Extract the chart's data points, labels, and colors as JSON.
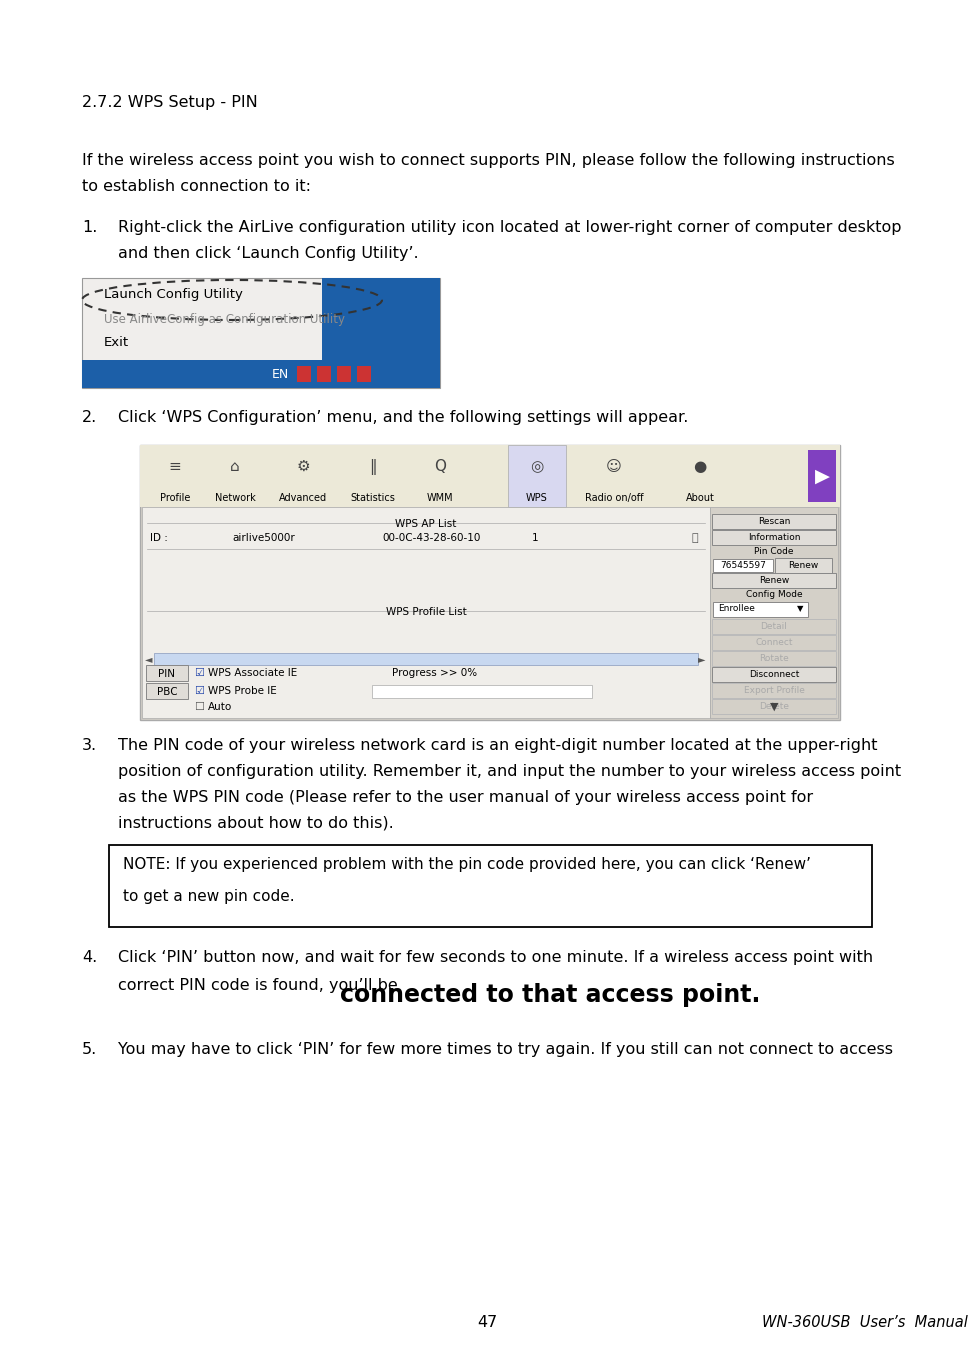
{
  "page_bg": "#ffffff",
  "section_title": "2.7.2 WPS Setup - PIN",
  "intro_line1": "If the wireless access point you wish to connect supports PIN, please follow the following instructions",
  "intro_line2": "to establish connection to it:",
  "item1_line1": "Right-click the AirLive configuration utility icon located at lower-right corner of computer desktop",
  "item1_line2": "and then click ‘Launch Config Utility’.",
  "item2_text": "Click ‘WPS Configuration’ menu, and the following settings will appear.",
  "item3_line1": "The PIN code of your wireless network card is an eight-digit number located at the upper-right",
  "item3_line2": "position of configuration utility. Remember it, and input the number to your wireless access point",
  "item3_line3": "as the WPS PIN code (Please refer to the user manual of your wireless access point for",
  "item3_line4": "instructions about how to do this).",
  "note_line1": "NOTE: If you experienced problem with the pin code provided here, you can click ‘Renew’",
  "note_line2": "to get a new pin code.",
  "item4_line1": "Click ‘PIN’ button now, and wait for few seconds to one minute. If a wireless access point with",
  "item4_line2_normal": "correct PIN code is found, you’ll be ",
  "item4_line2_bold": "connected to that access point.",
  "item5_text": "You may have to click ‘PIN’ for few more times to try again. If you still can not connect to access",
  "footer_page": "47",
  "footer_manual": "WN-360USB  User’s  Manual"
}
